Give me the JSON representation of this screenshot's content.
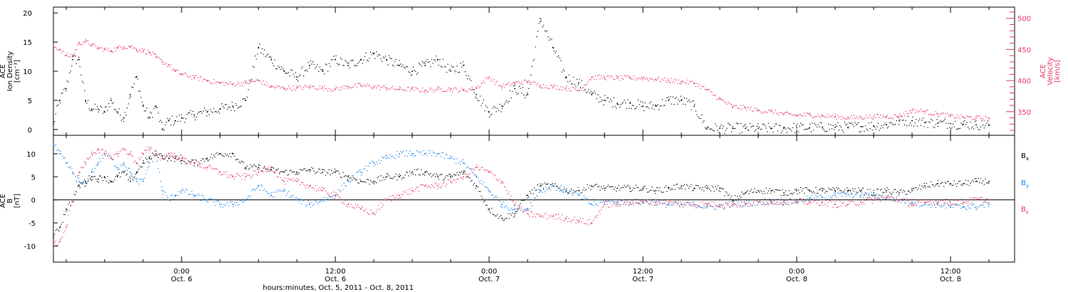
{
  "colors": {
    "black": "#000000",
    "red": "#e8385f",
    "blue": "#1a82e3"
  },
  "figure": {
    "xlabel": "hours:minutes, Oct. 5, 2011 - Oct. 8, 2011",
    "x_ticks": [
      {
        "hour": 0,
        "day": "Oct. 6",
        "label": "0:00"
      },
      {
        "hour": 12,
        "day": "Oct. 6",
        "label": "12:00"
      },
      {
        "hour": 24,
        "day": "Oct. 7",
        "label": "0:00"
      },
      {
        "hour": 36,
        "day": "Oct. 7",
        "label": "12:00"
      },
      {
        "hour": 48,
        "day": "Oct. 8",
        "label": "0:00"
      },
      {
        "hour": 60,
        "day": "Oct. 8",
        "label": "12:00"
      }
    ]
  },
  "chart_data": [
    {
      "type": "scatter",
      "x_unit": "hours relative to 0:00 Oct. 6, 2011",
      "xlim": [
        -10,
        65
      ],
      "ylabel_left": [
        "ACE",
        "Ion Density",
        "[cm⁻³]"
      ],
      "ylabel_right": [
        "ACE",
        "Velocity",
        "[km/s]"
      ],
      "ylim_left": [
        -1,
        21
      ],
      "ylim_right": [
        312,
        518
      ],
      "left_ticks": [
        "0",
        "5",
        "10",
        "15",
        "20"
      ],
      "right_ticks": [
        "350",
        "400",
        "450",
        "500"
      ],
      "series": [
        {
          "axis": "left",
          "color": "black",
          "x": [
            -10,
            -9.5,
            -9,
            -8.5,
            -8,
            -7.5,
            -7,
            -6.5,
            -6,
            -5.5,
            -5,
            -4.5,
            -4,
            -3.5,
            -3,
            -2.5,
            -2,
            -1.5,
            -1,
            -0.5,
            0,
            1,
            2,
            3,
            4,
            5,
            6,
            7,
            8,
            9,
            10,
            11,
            12,
            13,
            14,
            15,
            16,
            17,
            18,
            19,
            20,
            21,
            22,
            23,
            24,
            25,
            26,
            27,
            28,
            29,
            30,
            31,
            32,
            33,
            34,
            35,
            36,
            37,
            38,
            39,
            40,
            41,
            42,
            43,
            44,
            45,
            46,
            47,
            48,
            49,
            50,
            51,
            52,
            53,
            54,
            55,
            56,
            57,
            58,
            59,
            60,
            61,
            62,
            63
          ],
          "y": [
            1,
            5,
            7,
            12,
            12,
            5,
            3.5,
            3.5,
            3,
            5,
            3,
            2,
            6,
            9,
            4,
            2,
            4,
            0,
            1.5,
            1.5,
            2,
            2.5,
            3,
            3.5,
            4,
            5,
            14,
            12,
            10,
            9,
            11,
            10,
            12,
            11,
            12,
            13,
            12,
            11,
            10,
            11,
            12,
            10,
            11,
            6,
            3,
            4,
            7,
            6,
            19,
            14,
            9,
            8,
            6,
            5,
            4.5,
            4.5,
            4,
            4,
            5,
            5,
            4,
            0.2,
            0.2,
            0.2,
            0.2,
            0.2,
            0.2,
            0.2,
            0.3,
            0.3,
            0.4,
            0.4,
            0.4,
            0.5,
            0.6,
            0.8,
            1.5,
            1.5,
            1.2,
            1.1,
            1,
            0.9,
            0.8,
            0.8
          ]
        },
        {
          "axis": "right",
          "color": "red",
          "x": [
            -10,
            -9.5,
            -9,
            -8.5,
            -8,
            -7.5,
            -7,
            -6.5,
            -6,
            -5.5,
            -5,
            -4.5,
            -4,
            -3.5,
            -3,
            -2.5,
            -2,
            -1.5,
            -1,
            -0.5,
            0,
            1,
            2,
            3,
            4,
            5,
            6,
            7,
            8,
            9,
            10,
            11,
            12,
            13,
            14,
            15,
            16,
            17,
            18,
            19,
            20,
            21,
            22,
            23,
            24,
            25,
            26,
            27,
            28,
            29,
            30,
            31,
            32,
            33,
            34,
            35,
            36,
            37,
            38,
            39,
            40,
            41,
            42,
            43,
            44,
            45,
            46,
            47,
            48,
            49,
            50,
            51,
            52,
            53,
            54,
            55,
            56,
            57,
            58,
            59,
            60,
            61,
            62,
            63
          ],
          "y": [
            455,
            450,
            440,
            440,
            460,
            463,
            457,
            452,
            450,
            448,
            452,
            454,
            455,
            450,
            448,
            445,
            438,
            430,
            425,
            415,
            410,
            405,
            400,
            396,
            394,
            396,
            400,
            390,
            388,
            388,
            390,
            388,
            386,
            390,
            392,
            390,
            388,
            386,
            386,
            384,
            386,
            386,
            384,
            388,
            405,
            390,
            396,
            398,
            392,
            390,
            388,
            384,
            405,
            405,
            404,
            404,
            404,
            402,
            400,
            398,
            396,
            385,
            370,
            358,
            356,
            352,
            350,
            346,
            344,
            345,
            343,
            342,
            340,
            341,
            342,
            342,
            343,
            352,
            350,
            346,
            343,
            341,
            340,
            339
          ]
        }
      ]
    },
    {
      "type": "scatter",
      "x_unit": "hours relative to 0:00 Oct. 6, 2011",
      "xlim": [
        -10,
        65
      ],
      "ylabel_left": [
        "ACE",
        "B",
        "[nT]"
      ],
      "ylim": [
        -13.5,
        14
      ],
      "left_ticks": [
        "-10",
        "-5",
        "0",
        "5",
        "10"
      ],
      "zero_line": true,
      "legend_placement": "right",
      "series": [
        {
          "name": "Bx",
          "color": "black",
          "x": [
            -10,
            -9.5,
            -9,
            -8.5,
            -8,
            -7.5,
            -7,
            -6.5,
            -6,
            -5.5,
            -5,
            -4.5,
            -4,
            -3.5,
            -3,
            -2.5,
            -2,
            -1.5,
            -1,
            -0.5,
            0,
            1,
            2,
            3,
            4,
            5,
            6,
            7,
            8,
            9,
            10,
            11,
            12,
            13,
            14,
            15,
            16,
            17,
            18,
            19,
            20,
            21,
            22,
            23,
            24,
            25,
            26,
            27,
            28,
            29,
            30,
            31,
            32,
            33,
            34,
            35,
            36,
            37,
            38,
            39,
            40,
            41,
            42,
            43,
            44,
            45,
            46,
            47,
            48,
            49,
            50,
            51,
            52,
            53,
            54,
            55,
            56,
            57,
            58,
            59,
            60,
            61,
            62,
            63
          ],
          "y": [
            -8,
            -6,
            -2,
            0,
            3,
            4,
            5,
            4.5,
            5,
            4,
            5,
            6,
            4,
            6,
            8,
            9,
            10,
            9.5,
            9,
            9,
            8.5,
            8,
            9,
            10,
            10,
            7,
            7,
            6.5,
            6,
            6,
            6.5,
            6,
            6,
            5,
            4,
            4,
            5,
            5,
            6,
            6,
            5,
            5,
            6,
            3,
            -2,
            -4,
            -3,
            1,
            3,
            3,
            2,
            2,
            3,
            2.5,
            2.5,
            2.5,
            2.5,
            2,
            2.5,
            3,
            2.5,
            2.5,
            2.5,
            0,
            1.5,
            2,
            2,
            1.5,
            2,
            2,
            2,
            2,
            2,
            2,
            1.5,
            2,
            1.5,
            2,
            3,
            3.5,
            3.5,
            3.5,
            4,
            4
          ]
        },
        {
          "name": "By",
          "color": "blue",
          "x": [
            -10,
            -9.5,
            -9,
            -8.5,
            -8,
            -7.5,
            -7,
            -6.5,
            -6,
            -5.5,
            -5,
            -4.5,
            -4,
            -3.5,
            -3,
            -2.5,
            -2,
            -1.5,
            -1,
            -0.5,
            0,
            1,
            2,
            3,
            4,
            5,
            6,
            7,
            8,
            9,
            10,
            11,
            12,
            13,
            14,
            15,
            16,
            17,
            18,
            19,
            20,
            21,
            22,
            23,
            24,
            25,
            26,
            27,
            28,
            29,
            30,
            31,
            32,
            33,
            34,
            35,
            36,
            37,
            38,
            39,
            40,
            41,
            42,
            43,
            44,
            45,
            46,
            47,
            48,
            49,
            50,
            51,
            52,
            53,
            54,
            55,
            56,
            57,
            58,
            59,
            60,
            61,
            62,
            63
          ],
          "y": [
            12,
            10,
            8,
            6,
            4,
            3,
            6,
            8,
            10,
            9,
            7,
            8,
            6,
            4,
            4,
            8,
            10,
            2,
            0,
            1,
            2,
            1,
            0,
            -1,
            -1,
            0,
            3,
            1,
            2,
            0,
            -1,
            0,
            1,
            4,
            6,
            8,
            9,
            10,
            10,
            10,
            10,
            9,
            8,
            5,
            2,
            -1,
            -2,
            -2,
            2,
            3,
            2,
            1,
            -1,
            -0.5,
            -0.5,
            -0.5,
            -0.5,
            -0.5,
            -1,
            -1,
            -1,
            -1.5,
            -1.5,
            -1,
            -0.8,
            -0.5,
            -0.3,
            -0.5,
            -0.3,
            0.3,
            0.5,
            1,
            1.2,
            1,
            1,
            0.5,
            0,
            -0.5,
            -1,
            -1,
            -1.5,
            -1.5,
            -1.5,
            -1
          ]
        },
        {
          "name": "Bz",
          "color": "red",
          "x": [
            -10,
            -9.5,
            -9,
            -8.5,
            -8,
            -7.5,
            -7,
            -6.5,
            -6,
            -5.5,
            -5,
            -4.5,
            -4,
            -3.5,
            -3,
            -2.5,
            -2,
            -1.5,
            -1,
            -0.5,
            0,
            1,
            2,
            3,
            4,
            5,
            6,
            7,
            8,
            9,
            10,
            11,
            12,
            13,
            14,
            15,
            16,
            17,
            18,
            19,
            20,
            21,
            22,
            23,
            24,
            25,
            26,
            27,
            28,
            29,
            30,
            31,
            32,
            33,
            34,
            35,
            36,
            37,
            38,
            39,
            40,
            41,
            42,
            43,
            44,
            45,
            46,
            47,
            48,
            49,
            50,
            51,
            52,
            53,
            54,
            55,
            56,
            57,
            58,
            59,
            60,
            61,
            62,
            63
          ],
          "y": [
            -10,
            -9,
            -6,
            0,
            6,
            8,
            10,
            11,
            10,
            9,
            10,
            11,
            10,
            8,
            10,
            11,
            10,
            9,
            10,
            9.5,
            9,
            8,
            7,
            6,
            5,
            5,
            6,
            7,
            4,
            4,
            3,
            2,
            1,
            -1,
            -2,
            -3,
            0,
            1,
            2,
            3,
            3,
            4,
            5,
            7,
            6,
            4,
            -1,
            -3,
            -3.5,
            -3.5,
            -4,
            -4.5,
            -5,
            -1,
            -1,
            -0.5,
            -0.5,
            -0.5,
            -0.5,
            -1,
            -1,
            -1,
            -1,
            -1,
            -1,
            -0.5,
            -0.5,
            -0.3,
            -0.5,
            -0.5,
            -0.5,
            -1,
            -1,
            -0.5,
            0,
            0.5,
            0,
            -1,
            -0.5,
            -0.5,
            -0.5,
            -0.5,
            0,
            0
          ]
        }
      ]
    }
  ]
}
